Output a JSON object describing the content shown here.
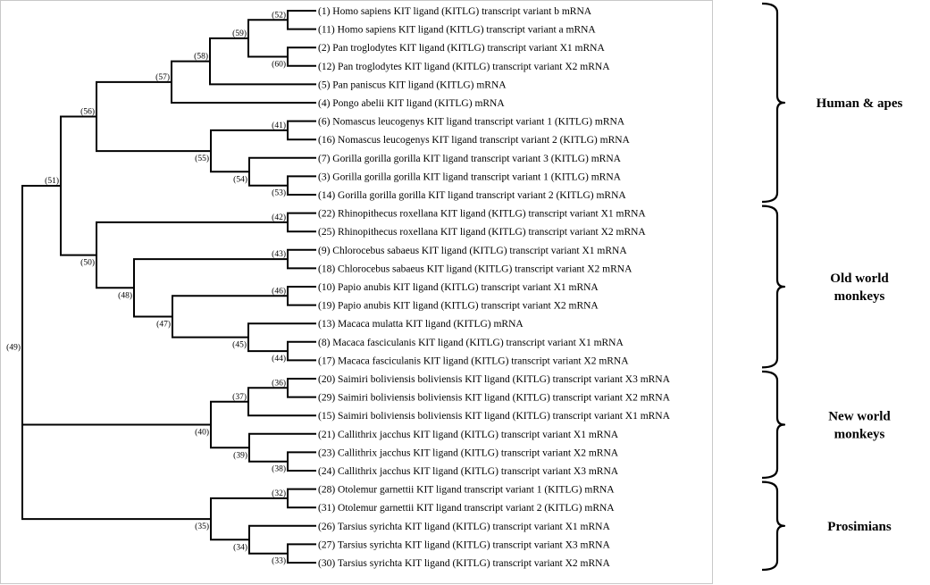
{
  "leaves": [
    {
      "id": "L1",
      "text": "(1) Homo sapiens KIT ligand (KITLG) transcript variant b mRNA"
    },
    {
      "id": "L11",
      "text": "(11) Homo sapiens KIT ligand (KITLG) transcript variant a mRNA"
    },
    {
      "id": "L2",
      "text": "(2) Pan troglodytes KIT ligand (KITLG) transcript variant X1 mRNA"
    },
    {
      "id": "L12",
      "text": "(12) Pan troglodytes KIT ligand (KITLG) transcript variant X2 mRNA"
    },
    {
      "id": "L5",
      "text": "(5) Pan paniscus KIT ligand (KITLG) mRNA"
    },
    {
      "id": "L4",
      "text": "(4) Pongo abelii KIT ligand (KITLG) mRNA"
    },
    {
      "id": "L6",
      "text": "(6) Nomascus leucogenys KIT ligand transcript variant 1 (KITLG) mRNA"
    },
    {
      "id": "L16",
      "text": "(16) Nomascus leucogenys KIT ligand transcript variant 2 (KITLG) mRNA"
    },
    {
      "id": "L7",
      "text": "(7) Gorilla gorilla gorilla KIT ligand transcript variant 3 (KITLG) mRNA"
    },
    {
      "id": "L3",
      "text": "(3) Gorilla gorilla gorilla KIT ligand transcript variant 1 (KITLG) mRNA"
    },
    {
      "id": "L14",
      "text": "(14) Gorilla gorilla gorilla KIT ligand transcript variant 2 (KITLG) mRNA"
    },
    {
      "id": "L22",
      "text": "(22) Rhinopithecus roxellana KIT ligand (KITLG) transcript variant X1 mRNA"
    },
    {
      "id": "L25",
      "text": "(25) Rhinopithecus roxellana KIT ligand (KITLG) transcript variant X2 mRNA"
    },
    {
      "id": "L9",
      "text": "(9) Chlorocebus sabaeus KIT ligand (KITLG) transcript variant X1 mRNA"
    },
    {
      "id": "L18",
      "text": "(18) Chlorocebus sabaeus KIT ligand (KITLG) transcript variant X2 mRNA"
    },
    {
      "id": "L10",
      "text": "(10) Papio anubis KIT ligand (KITLG) transcript variant X1 mRNA"
    },
    {
      "id": "L19",
      "text": "(19) Papio anubis KIT ligand (KITLG) transcript variant X2 mRNA"
    },
    {
      "id": "L13",
      "text": "(13) Macaca mulatta KIT ligand (KITLG) mRNA"
    },
    {
      "id": "L8",
      "text": "(8) Macaca fasciculanis KIT ligand (KITLG) transcript variant X1 mRNA"
    },
    {
      "id": "L17",
      "text": "(17) Macaca fasciculanis KIT ligand (KITLG) transcript variant X2 mRNA"
    },
    {
      "id": "L20",
      "text": "(20) Saimiri boliviensis boliviensis KIT ligand (KITLG) transcript variant X3 mRNA"
    },
    {
      "id": "L29",
      "text": "(29) Saimiri boliviensis boliviensis KIT ligand (KITLG) transcript variant X2 mRNA"
    },
    {
      "id": "L15",
      "text": "(15) Saimiri boliviensis boliviensis KIT ligand (KITLG) transcript variant X1 mRNA"
    },
    {
      "id": "L21",
      "text": "(21) Callithrix jacchus KIT ligand (KITLG) transcript variant X1 mRNA"
    },
    {
      "id": "L23",
      "text": "(23) Callithrix jacchus KIT ligand (KITLG) transcript variant X2 mRNA"
    },
    {
      "id": "L24",
      "text": "(24) Callithrix jacchus KIT ligand (KITLG) transcript variant X3 mRNA"
    },
    {
      "id": "L28",
      "text": "(28) Otolemur garnettii KIT ligand transcript variant 1 (KITLG) mRNA"
    },
    {
      "id": "L31",
      "text": "(31) Otolemur garnettii KIT ligand transcript variant 2 (KITLG) mRNA"
    },
    {
      "id": "L26",
      "text": "(26) Tarsius syrichta KIT ligand (KITLG) transcript variant X1 mRNA"
    },
    {
      "id": "L27",
      "text": "(27) Tarsius syrichta KIT ligand (KITLG) transcript variant X3 mRNA"
    },
    {
      "id": "L30",
      "text": "(30) Tarsius syrichta KIT ligand (KITLG) transcript variant X2 mRNA"
    }
  ],
  "nodes": [
    {
      "id": "N52",
      "label": "(52)",
      "children": [
        "L1",
        "L11"
      ]
    },
    {
      "id": "N60",
      "label": "(60)",
      "children": [
        "L2",
        "L12"
      ]
    },
    {
      "id": "N59",
      "label": "(59)",
      "children": [
        "N52",
        "N60"
      ]
    },
    {
      "id": "N58",
      "label": "(58)",
      "children": [
        "N59",
        "L5"
      ]
    },
    {
      "id": "N57",
      "label": "(57)",
      "children": [
        "N58",
        "L4"
      ]
    },
    {
      "id": "N41",
      "label": "(41)",
      "children": [
        "L6",
        "L16"
      ]
    },
    {
      "id": "N53",
      "label": "(53)",
      "children": [
        "L3",
        "L14"
      ]
    },
    {
      "id": "N54",
      "label": "(54)",
      "children": [
        "L7",
        "N53"
      ]
    },
    {
      "id": "N55",
      "label": "(55)",
      "children": [
        "N41",
        "N54"
      ]
    },
    {
      "id": "N56",
      "label": "(56)",
      "children": [
        "N57",
        "N55"
      ]
    },
    {
      "id": "N42",
      "label": "(42)",
      "children": [
        "L22",
        "L25"
      ]
    },
    {
      "id": "N43",
      "label": "(43)",
      "children": [
        "L9",
        "L18"
      ]
    },
    {
      "id": "N46",
      "label": "(46)",
      "children": [
        "L10",
        "L19"
      ]
    },
    {
      "id": "N44",
      "label": "(44)",
      "children": [
        "L8",
        "L17"
      ]
    },
    {
      "id": "N45",
      "label": "(45)",
      "children": [
        "L13",
        "N44"
      ]
    },
    {
      "id": "N47",
      "label": "(47)",
      "children": [
        "N46",
        "N45"
      ]
    },
    {
      "id": "N48",
      "label": "(48)",
      "children": [
        "N43",
        "N47"
      ]
    },
    {
      "id": "N50",
      "label": "(50)",
      "children": [
        "N42",
        "N48"
      ]
    },
    {
      "id": "N51",
      "label": "(51)",
      "children": [
        "N56",
        "N50"
      ]
    },
    {
      "id": "N36",
      "label": "(36)",
      "children": [
        "L20",
        "L29"
      ]
    },
    {
      "id": "N37",
      "label": "(37)",
      "children": [
        "N36",
        "L15"
      ]
    },
    {
      "id": "N38",
      "label": "(38)",
      "children": [
        "L23",
        "L24"
      ]
    },
    {
      "id": "N39",
      "label": "(39)",
      "children": [
        "L21",
        "N38"
      ]
    },
    {
      "id": "N40",
      "label": "(40)",
      "children": [
        "N37",
        "N39"
      ]
    },
    {
      "id": "N32",
      "label": "(32)",
      "children": [
        "L28",
        "L31"
      ]
    },
    {
      "id": "N33",
      "label": "(33)",
      "children": [
        "L27",
        "L30"
      ]
    },
    {
      "id": "N34",
      "label": "(34)",
      "children": [
        "L26",
        "N33"
      ]
    },
    {
      "id": "N35",
      "label": "(35)",
      "children": [
        "N32",
        "N34"
      ]
    },
    {
      "id": "N49",
      "label": "(49)",
      "children": [
        "N51",
        "N40",
        "N35"
      ]
    }
  ],
  "groups": [
    {
      "lines": [
        "Human & apes"
      ],
      "from": "L1",
      "to": "L14"
    },
    {
      "lines": [
        "Old world",
        "monkeys"
      ],
      "from": "L22",
      "to": "L17"
    },
    {
      "lines": [
        "New world",
        "monkeys"
      ],
      "from": "L20",
      "to": "L24"
    },
    {
      "lines": [
        "Prosimians"
      ],
      "from": "L28",
      "to": "L30"
    }
  ]
}
